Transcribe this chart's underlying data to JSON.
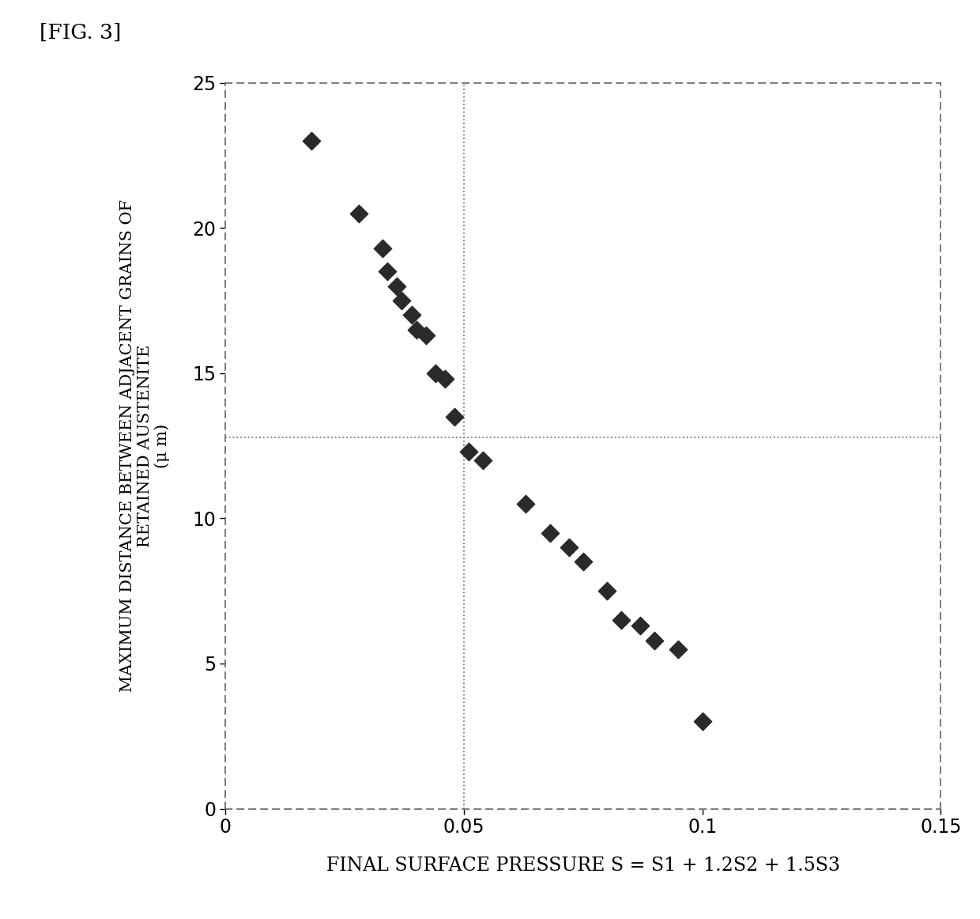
{
  "xlabel": "FINAL SURFACE PRESSURE S = S1 + 1.2S2 + 1.5S3",
  "ylabel_line1": "MAXIMUM DISTANCE BETWEEN ADJACENT GRAINS OF",
  "ylabel_line2": "RETAINED AUSTENITE",
  "ylabel_unit": "(μ m)",
  "x_data": [
    0.018,
    0.028,
    0.033,
    0.034,
    0.036,
    0.037,
    0.039,
    0.04,
    0.042,
    0.044,
    0.046,
    0.048,
    0.051,
    0.054,
    0.063,
    0.068,
    0.072,
    0.075,
    0.08,
    0.083,
    0.087,
    0.09,
    0.095,
    0.1
  ],
  "y_data": [
    23,
    20.5,
    19.3,
    18.5,
    18.0,
    17.5,
    17.0,
    16.5,
    16.3,
    15.0,
    14.8,
    13.5,
    12.3,
    12.0,
    10.5,
    9.5,
    9.0,
    8.5,
    7.5,
    6.5,
    6.3,
    5.8,
    5.5,
    3.0
  ],
  "xlim": [
    0,
    0.15
  ],
  "ylim": [
    0,
    25
  ],
  "xticks": [
    0,
    0.05,
    0.1,
    0.15
  ],
  "xtick_labels": [
    "0",
    "0.05",
    "0.1",
    "0.15"
  ],
  "yticks": [
    0,
    5,
    10,
    15,
    20,
    25
  ],
  "vline_x": 0.05,
  "hline_y": 12.8,
  "marker_color": "#2a2a2a",
  "marker_size": 130,
  "bg_color": "#ffffff",
  "fig_label": "[FIG. 3]",
  "spine_color": "#666666",
  "spine_linewidth": 1.2,
  "refline_color": "#777777",
  "refline_linewidth": 1.3
}
